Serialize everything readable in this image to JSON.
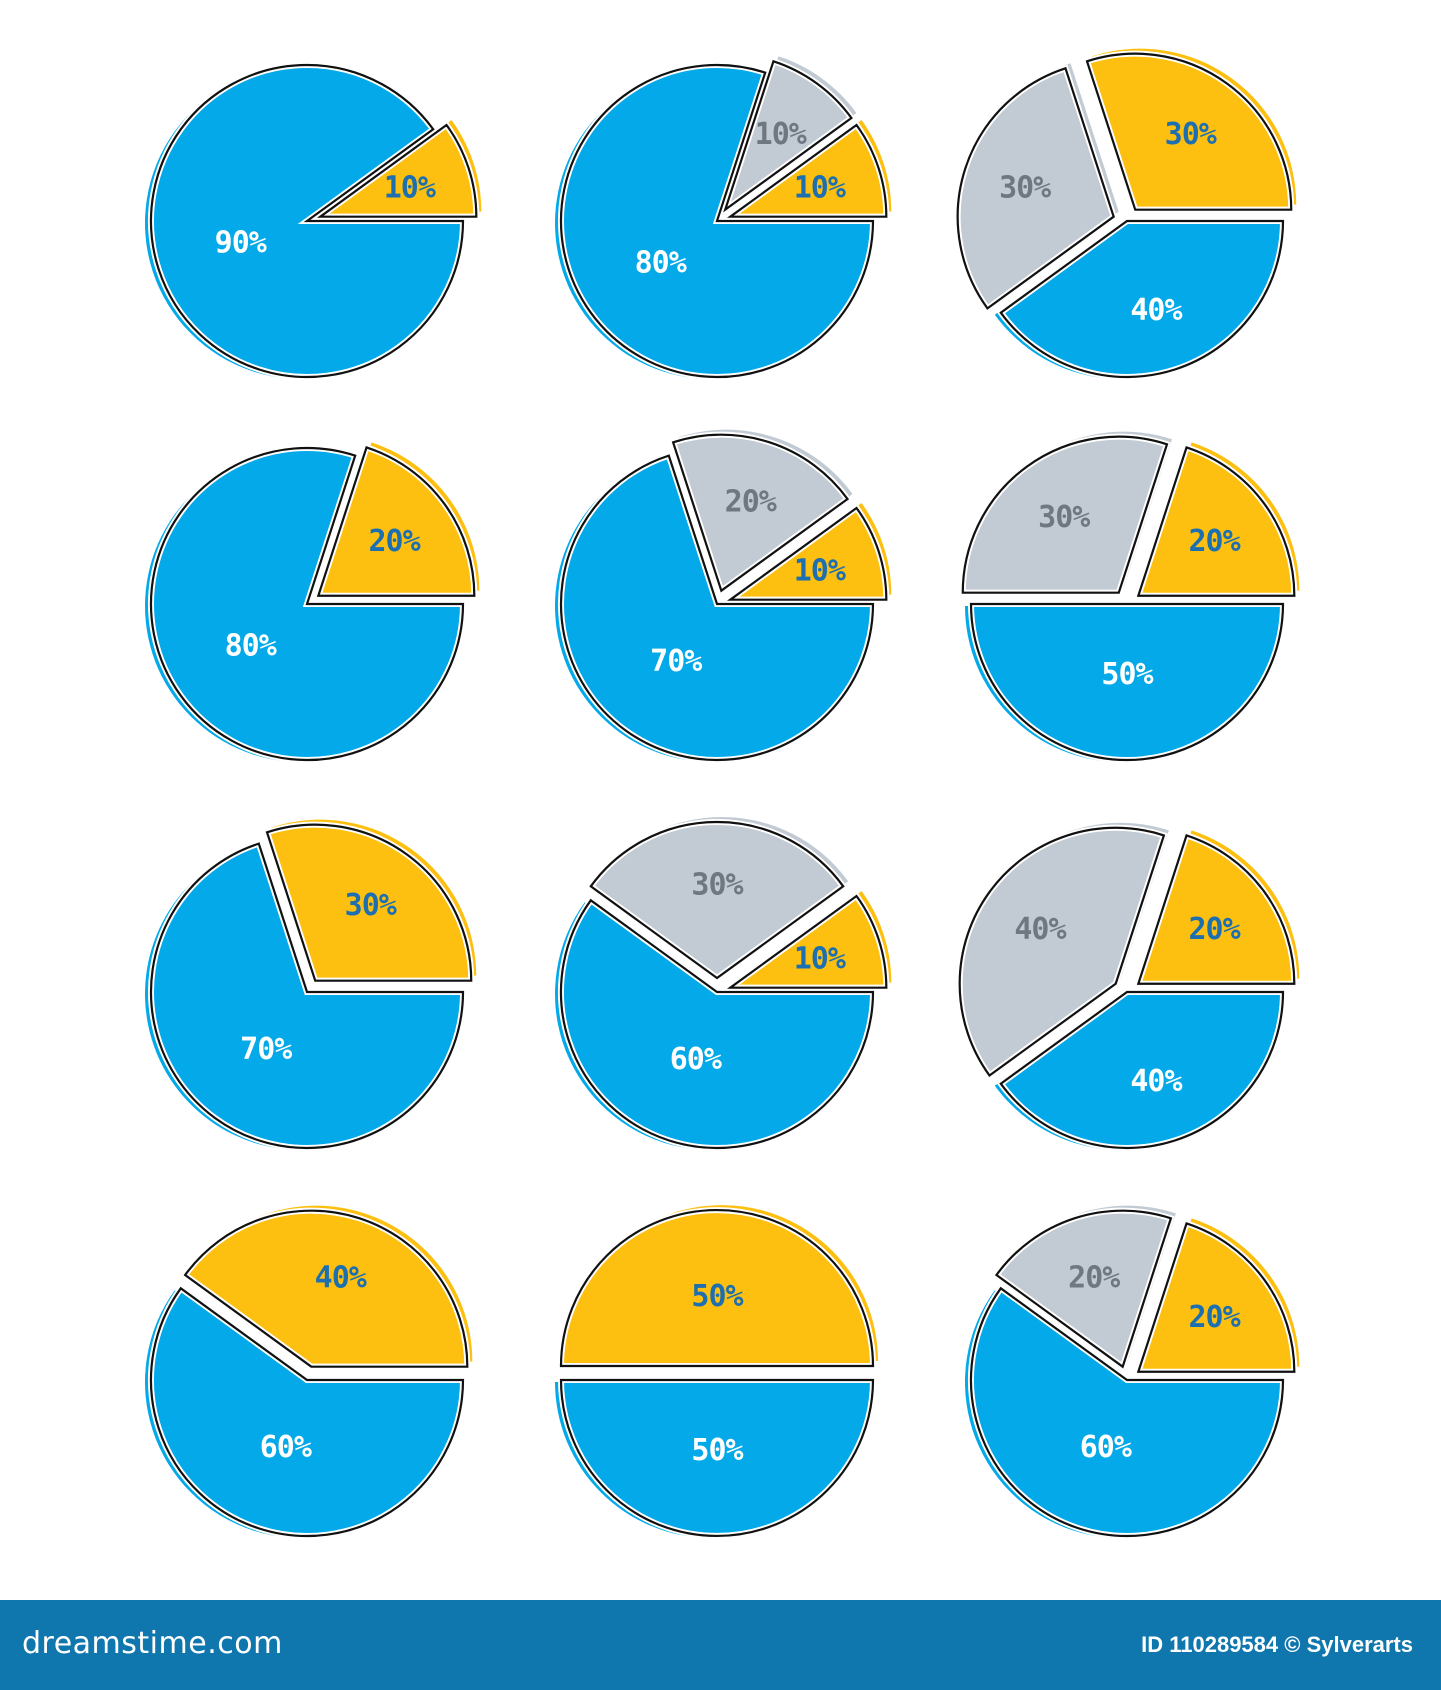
{
  "colors": {
    "blue": "#03a9e8",
    "yellow": "#fdc010",
    "grey": "#c2cbd4",
    "outline": "#111111",
    "footer": "#0f77ad",
    "yellow_text": "#1d6fb0",
    "grey_text": "#6f7780",
    "blue_text": "#ffffff"
  },
  "chart_data": [
    {
      "type": "pie",
      "slices": [
        {
          "color": "blue",
          "value": 90,
          "label": "90%"
        },
        {
          "color": "yellow",
          "value": 10,
          "label": "10%",
          "exploded": true
        }
      ]
    },
    {
      "type": "pie",
      "slices": [
        {
          "color": "blue",
          "value": 80,
          "label": "80%"
        },
        {
          "color": "grey",
          "value": 10,
          "label": "10%",
          "exploded": true
        },
        {
          "color": "yellow",
          "value": 10,
          "label": "10%",
          "exploded": true
        }
      ]
    },
    {
      "type": "pie",
      "slices": [
        {
          "color": "blue",
          "value": 40,
          "label": "40%"
        },
        {
          "color": "grey",
          "value": 30,
          "label": "30%",
          "exploded": true
        },
        {
          "color": "yellow",
          "value": 30,
          "label": "30%",
          "exploded": true
        }
      ]
    },
    {
      "type": "pie",
      "slices": [
        {
          "color": "blue",
          "value": 80,
          "label": "80%"
        },
        {
          "color": "yellow",
          "value": 20,
          "label": "20%",
          "exploded": true
        }
      ]
    },
    {
      "type": "pie",
      "slices": [
        {
          "color": "blue",
          "value": 70,
          "label": "70%"
        },
        {
          "color": "grey",
          "value": 20,
          "label": "20%",
          "exploded": true
        },
        {
          "color": "yellow",
          "value": 10,
          "label": "10%",
          "exploded": true
        }
      ]
    },
    {
      "type": "pie",
      "slices": [
        {
          "color": "blue",
          "value": 50,
          "label": "50%"
        },
        {
          "color": "grey",
          "value": 30,
          "label": "30%",
          "exploded": true
        },
        {
          "color": "yellow",
          "value": 20,
          "label": "20%",
          "exploded": true
        }
      ]
    },
    {
      "type": "pie",
      "slices": [
        {
          "color": "blue",
          "value": 70,
          "label": "70%"
        },
        {
          "color": "yellow",
          "value": 30,
          "label": "30%",
          "exploded": true
        }
      ]
    },
    {
      "type": "pie",
      "slices": [
        {
          "color": "blue",
          "value": 60,
          "label": "60%"
        },
        {
          "color": "grey",
          "value": 30,
          "label": "30%",
          "exploded": true
        },
        {
          "color": "yellow",
          "value": 10,
          "label": "10%",
          "exploded": true
        }
      ]
    },
    {
      "type": "pie",
      "slices": [
        {
          "color": "blue",
          "value": 40,
          "label": "40%"
        },
        {
          "color": "grey",
          "value": 40,
          "label": "40%",
          "exploded": true
        },
        {
          "color": "yellow",
          "value": 20,
          "label": "20%",
          "exploded": true
        }
      ]
    },
    {
      "type": "pie",
      "slices": [
        {
          "color": "blue",
          "value": 60,
          "label": "60%"
        },
        {
          "color": "yellow",
          "value": 40,
          "label": "40%",
          "exploded": true
        }
      ]
    },
    {
      "type": "pie",
      "slices": [
        {
          "color": "blue",
          "value": 50,
          "label": "50%"
        },
        {
          "color": "yellow",
          "value": 50,
          "label": "50%",
          "exploded": true
        }
      ]
    },
    {
      "type": "pie",
      "slices": [
        {
          "color": "blue",
          "value": 60,
          "label": "60%"
        },
        {
          "color": "grey",
          "value": 20,
          "label": "20%",
          "exploded": true
        },
        {
          "color": "yellow",
          "value": 20,
          "label": "20%",
          "exploded": true
        }
      ]
    }
  ],
  "footer": {
    "logo": "dreamstime.com",
    "credit": "ID 110289584 © Sylverarts"
  }
}
